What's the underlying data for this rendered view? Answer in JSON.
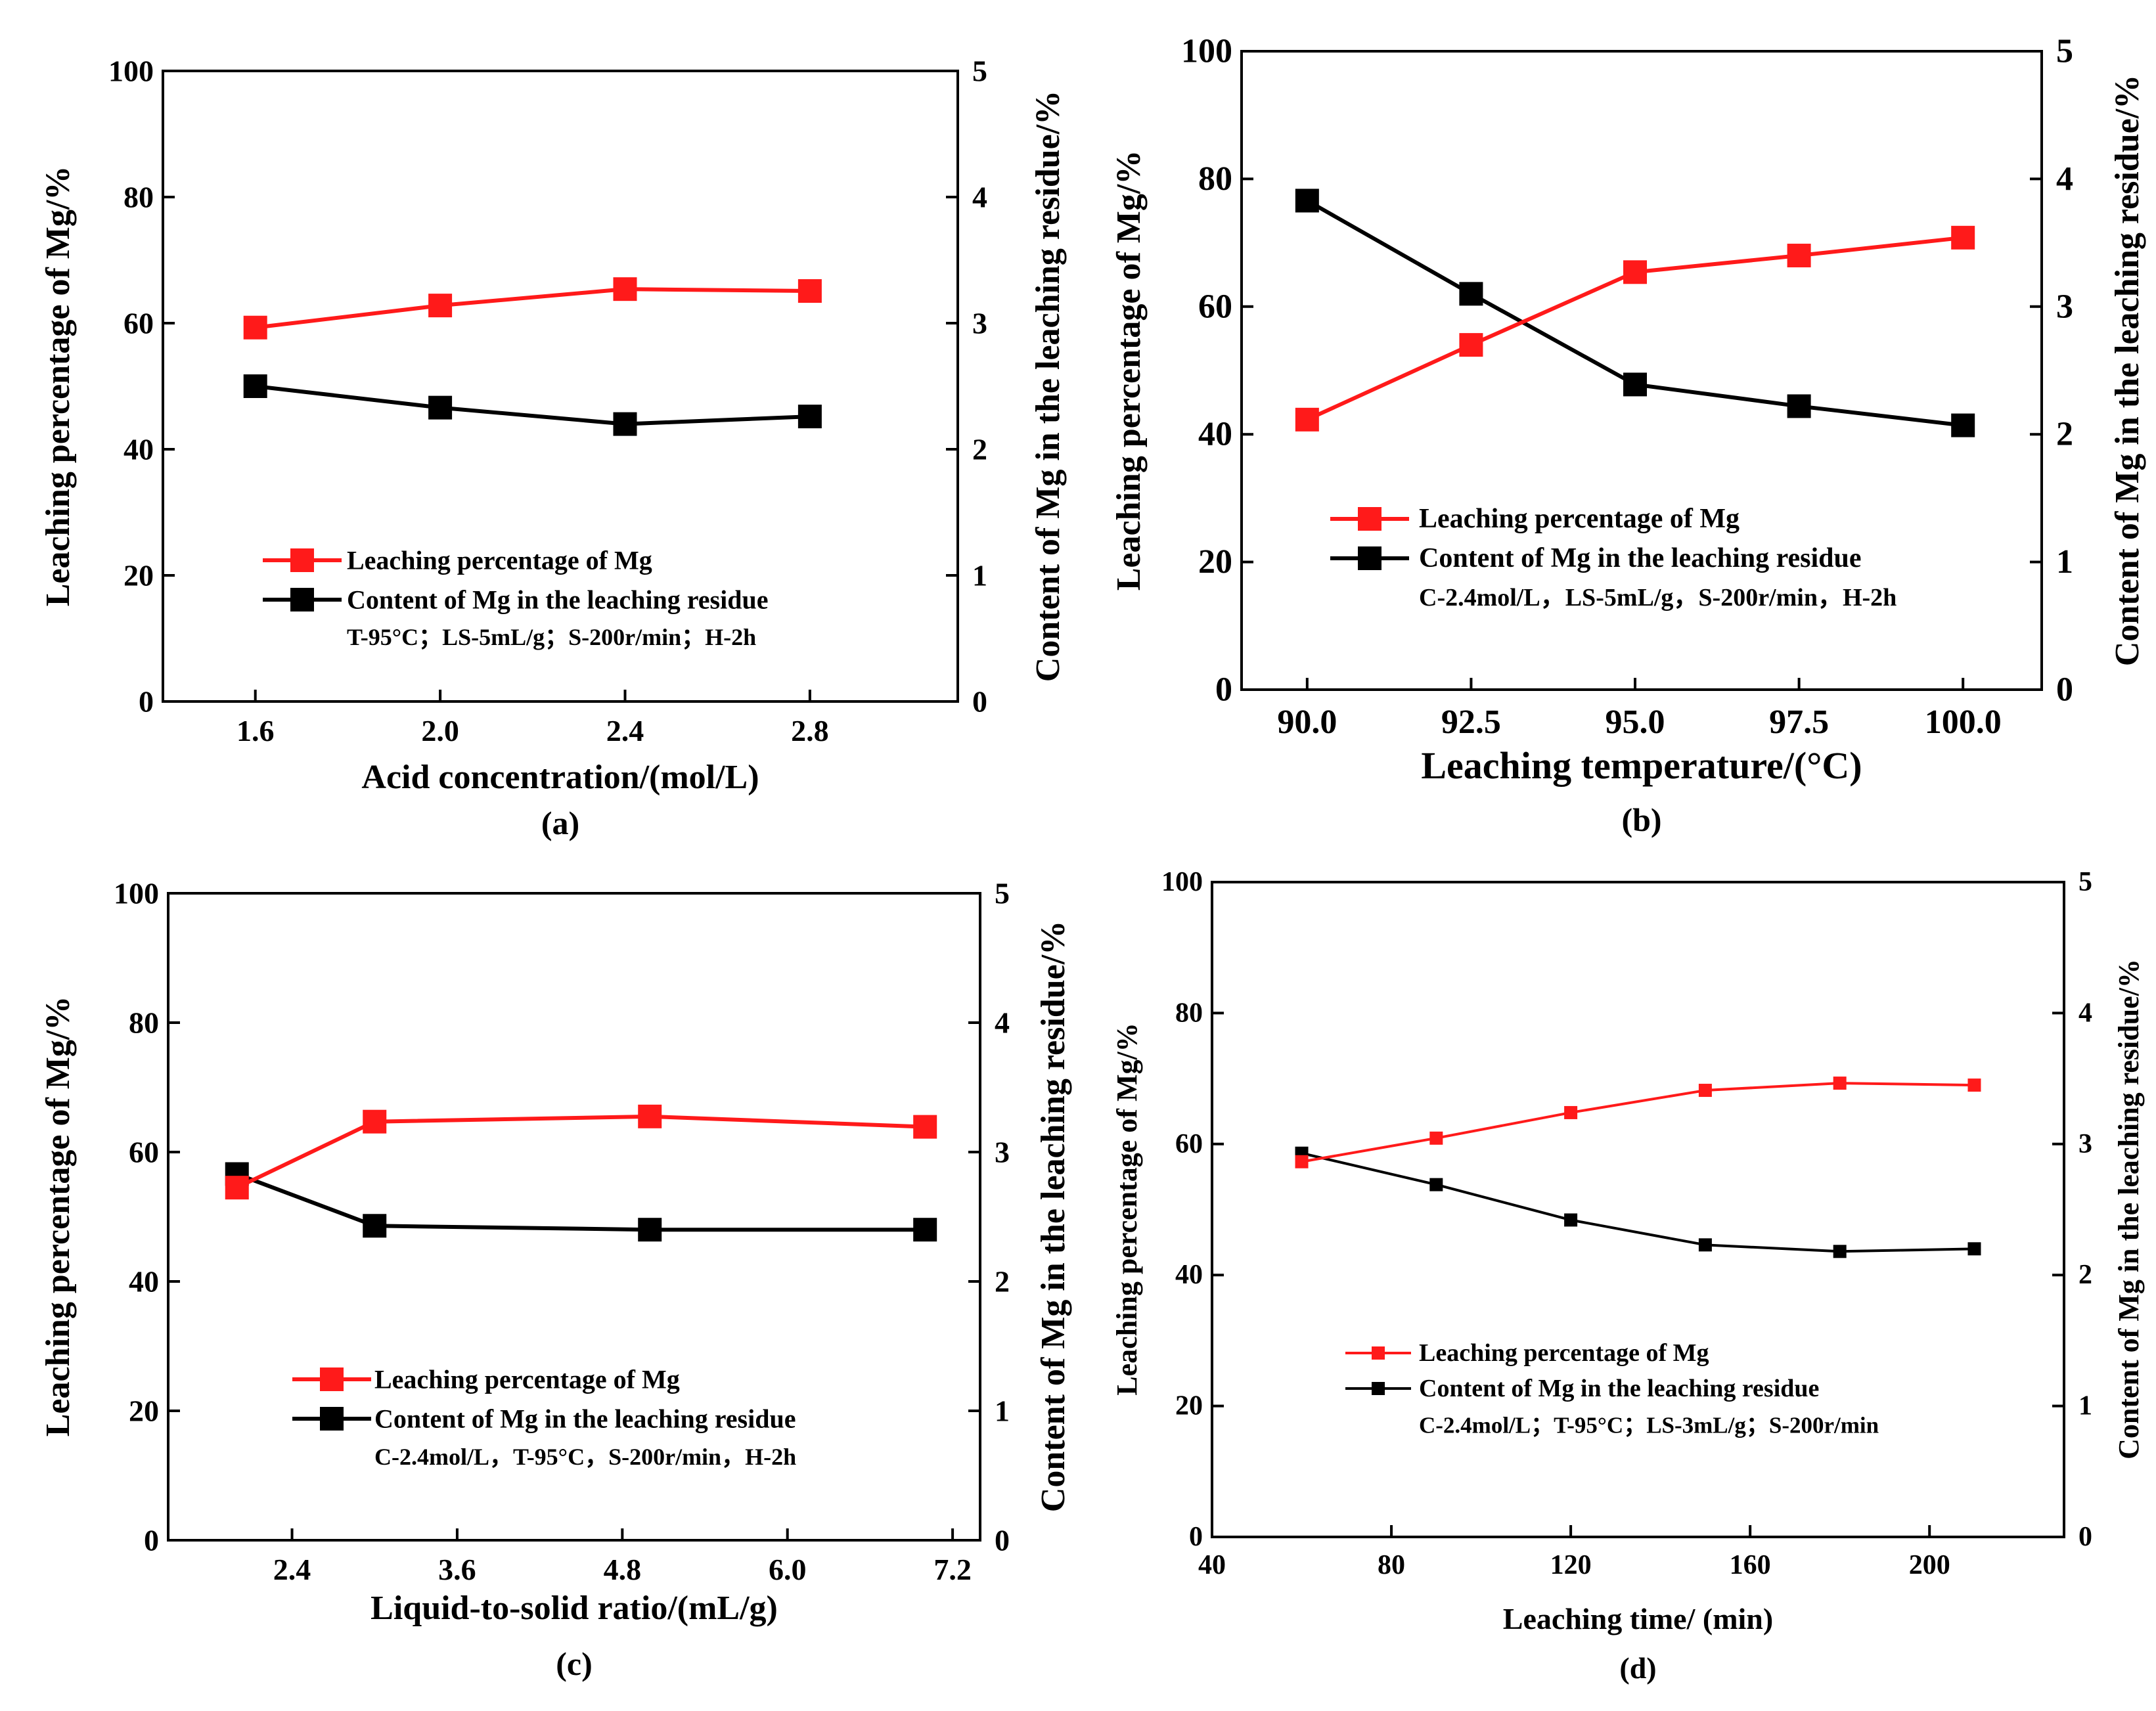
{
  "figure": {
    "left_axis_label": "Leaching percentage of Mg/%",
    "right_axis_label": "Content of Mg in the leaching residue/%",
    "series_colors": {
      "leaching": "#ff1a1a",
      "content": "#000000"
    }
  },
  "chart_data": [
    {
      "id": "a",
      "type": "line",
      "panel_label": "(a)",
      "xlabel": "Acid concentration/(mol/L)",
      "ylabel": "Leaching percentage of Mg/%",
      "y2label": "Content of Mg in the leaching residue/%",
      "xlim": [
        1.4,
        3.12
      ],
      "xticks": [
        "1.6",
        "2.0",
        "2.4",
        "2.8"
      ],
      "ylim": [
        0,
        100
      ],
      "yticks": [
        "0",
        "20",
        "40",
        "60",
        "80",
        "100"
      ],
      "y2lim": [
        0,
        5
      ],
      "y2ticks": [
        "0",
        "1",
        "2",
        "3",
        "4",
        "5"
      ],
      "x": [
        1.6,
        2.0,
        2.4,
        2.8
      ],
      "series": [
        {
          "name": "Leaching percentage of Mg",
          "axis": "left",
          "color": "#ff1a1a",
          "marker": "open-circle",
          "values": [
            59.3,
            62.8,
            65.4,
            65.1
          ]
        },
        {
          "name": "Content of Mg in the leaching residue",
          "axis": "right",
          "color": "#000000",
          "marker": "filled-square",
          "values": [
            2.5,
            2.33,
            2.2,
            2.26
          ]
        }
      ],
      "conditions": "T-95°C；LS-5mL/g；S-200r/min；H-2h"
    },
    {
      "id": "b",
      "type": "line",
      "panel_label": "(b)",
      "xlabel": "Leaching temperature/(°C)",
      "ylabel": "Leaching percentage of Mg/%",
      "y2label": "Content of Mg in the leaching residue/%",
      "xlim": [
        89.0,
        101.2
      ],
      "xticks": [
        "90.0",
        "92.5",
        "95.0",
        "97.5",
        "100.0"
      ],
      "ylim": [
        0,
        100
      ],
      "yticks": [
        "0",
        "20",
        "40",
        "60",
        "80",
        "100"
      ],
      "y2lim": [
        0,
        5
      ],
      "y2ticks": [
        "0",
        "1",
        "2",
        "3",
        "4",
        "5"
      ],
      "x": [
        90.0,
        92.5,
        95.0,
        97.5,
        100.0
      ],
      "series": [
        {
          "name": "Leaching percentage of Mg",
          "axis": "left",
          "color": "#ff1a1a",
          "marker": "open-circle",
          "values": [
            42.3,
            54.0,
            65.4,
            68.0,
            70.8
          ]
        },
        {
          "name": "Content of Mg in the leaching residue",
          "axis": "right",
          "color": "#000000",
          "marker": "filled-square",
          "values": [
            3.83,
            3.1,
            2.39,
            2.22,
            2.07
          ]
        }
      ],
      "conditions": "C-2.4mol/L，LS-5mL/g，S-200r/min，H-2h"
    },
    {
      "id": "c",
      "type": "line",
      "panel_label": "(c)",
      "xlabel": "Liquid-to-solid ratio/(mL/g)",
      "ylabel": "Leaching percentage of Mg/%",
      "y2label": "Content of Mg in the leaching residue/%",
      "xlim": [
        1.5,
        7.4
      ],
      "xticks": [
        "2.4",
        "3.6",
        "4.8",
        "6.0",
        "7.2"
      ],
      "ylim": [
        0,
        100
      ],
      "yticks": [
        "0",
        "20",
        "40",
        "60",
        "80",
        "100"
      ],
      "y2lim": [
        0,
        5
      ],
      "y2ticks": [
        "0",
        "1",
        "2",
        "3",
        "4",
        "5"
      ],
      "x": [
        2.0,
        3.0,
        5.0,
        7.0
      ],
      "series": [
        {
          "name": "Leaching percentage of Mg",
          "axis": "left",
          "color": "#ff1a1a",
          "marker": "open-circle",
          "values": [
            54.5,
            64.7,
            65.5,
            63.9
          ]
        },
        {
          "name": "Content of Mg in the leaching residue",
          "axis": "right",
          "color": "#000000",
          "marker": "filled-square",
          "values": [
            2.83,
            2.43,
            2.4,
            2.4
          ]
        }
      ],
      "conditions": "C-2.4mol/L，T-95°C，S-200r/min，H-2h"
    },
    {
      "id": "d",
      "type": "line",
      "panel_label": "(d)",
      "xlabel": "Leaching time/ (min)",
      "ylabel": "Leaching percentage of Mg/%",
      "y2label": "Content of Mg in the leaching residue/%",
      "xlim": [
        40,
        230
      ],
      "xticks": [
        "40",
        "80",
        "120",
        "160",
        "200"
      ],
      "ylim": [
        0,
        100
      ],
      "yticks": [
        "0",
        "20",
        "40",
        "60",
        "80",
        "100"
      ],
      "y2lim": [
        0,
        5
      ],
      "y2ticks": [
        "0",
        "1",
        "2",
        "3",
        "4",
        "5"
      ],
      "x": [
        60,
        90,
        120,
        150,
        180,
        210
      ],
      "series": [
        {
          "name": "Leaching percentage of Mg",
          "axis": "left",
          "color": "#ff1a1a",
          "marker": "open-circle-small",
          "values": [
            57.3,
            60.9,
            64.8,
            68.2,
            69.3,
            69.0
          ]
        },
        {
          "name": "Content of Mg in the leaching residue",
          "axis": "right",
          "color": "#000000",
          "marker": "filled-square-small",
          "values": [
            2.93,
            2.69,
            2.42,
            2.23,
            2.18,
            2.2
          ]
        }
      ],
      "conditions": "C-2.4mol/L；T-95°C；LS-3mL/g；S-200r/min"
    }
  ]
}
